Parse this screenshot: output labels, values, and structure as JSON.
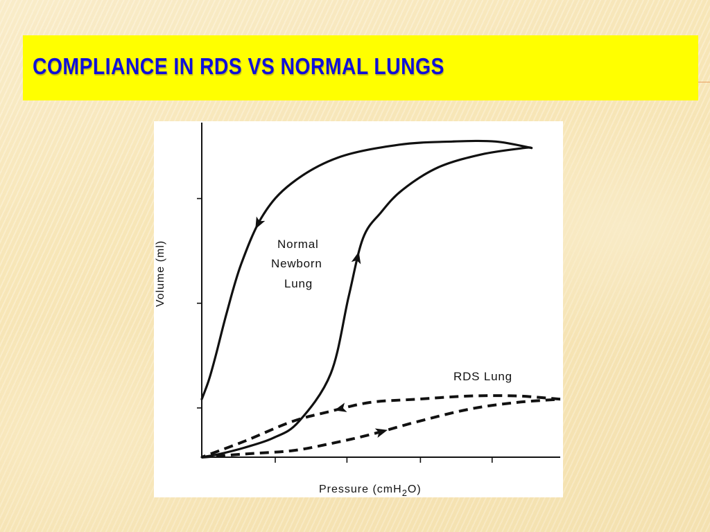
{
  "slide": {
    "title": "Compliance in RDS vs Normal lungs"
  },
  "colors": {
    "title_bar": "#ffff00",
    "title_text": "#1010d8",
    "background": "#f9e9bd"
  },
  "chart_data": {
    "type": "line",
    "title": "",
    "xlabel": "Pressure (cmH2O)",
    "ylabel": "Volume (ml)",
    "xlim": [
      0,
      100
    ],
    "ylim": [
      0,
      100
    ],
    "x_tick_labels": [],
    "y_tick_labels": [],
    "grid": false,
    "series": [
      {
        "name": "Normal Newborn Lung",
        "style": "solid",
        "labels": [
          "Normal",
          "Newborn",
          "Lung"
        ],
        "inflation": {
          "x": [
            0,
            5,
            12,
            20,
            27,
            36,
            41,
            45,
            50,
            56,
            66,
            78,
            90,
            92
          ],
          "y": [
            0,
            1,
            3,
            6,
            11,
            26,
            50,
            68,
            76,
            83,
            90,
            94,
            96,
            96
          ]
        },
        "deflation": {
          "x": [
            92,
            82,
            70,
            55,
            38,
            25,
            17,
            11,
            7,
            4,
            2,
            0
          ],
          "y": [
            96,
            98,
            98,
            97,
            93,
            85,
            75,
            60,
            45,
            32,
            24,
            18
          ]
        }
      },
      {
        "name": "RDS Lung",
        "style": "dashed",
        "labels": [
          "RDS Lung"
        ],
        "inflation": {
          "x": [
            0,
            12,
            25,
            35,
            47,
            60,
            75,
            88,
            100
          ],
          "y": [
            0,
            1,
            2,
            4,
            7,
            11,
            15,
            17,
            18
          ]
        },
        "deflation": {
          "x": [
            100,
            88,
            75,
            60,
            47,
            35,
            25,
            12,
            0
          ],
          "y": [
            18,
            19,
            19,
            18,
            17,
            14,
            11,
            5,
            0
          ]
        }
      }
    ]
  }
}
